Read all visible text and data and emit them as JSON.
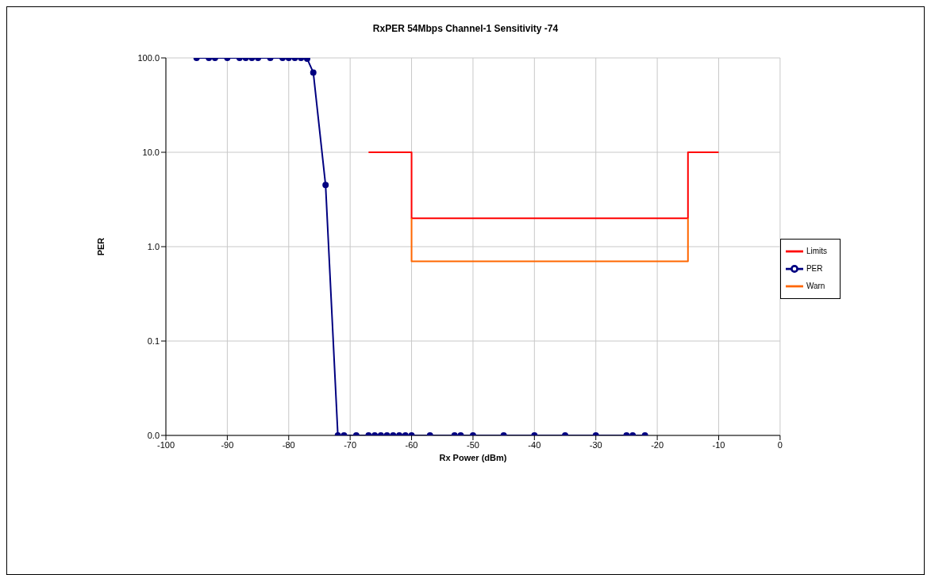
{
  "chart_data": {
    "type": "line",
    "title": "RxPER 54Mbps  Channel-1  Sensitivity -74",
    "xlabel": "Rx Power (dBm)",
    "ylabel": "PER",
    "series": [
      {
        "name": "PER",
        "color": "#000080",
        "marker": "circle",
        "x": [
          -95,
          -93,
          -92,
          -90,
          -88,
          -87,
          -86,
          -85,
          -83,
          -81,
          -80,
          -79,
          -78,
          -77,
          -76,
          -74,
          -72,
          -71,
          -69,
          -67,
          -66,
          -65,
          -64,
          -63,
          -62,
          -61,
          -60,
          -57,
          -53,
          -52,
          -50,
          -45,
          -40,
          -35,
          -30,
          -25,
          -24,
          -22
        ],
        "values": [
          100,
          100,
          100,
          100,
          100,
          100,
          100,
          100,
          100,
          100,
          100,
          100,
          100,
          98,
          70,
          4.5,
          0.01,
          0.01,
          0.01,
          0.01,
          0.01,
          0.01,
          0.01,
          0.01,
          0.01,
          0.01,
          0.01,
          0.01,
          0.01,
          0.01,
          0.01,
          0.01,
          0.01,
          0.01,
          0.01,
          0.01,
          0.01,
          0.01
        ]
      },
      {
        "name": "Limits",
        "color": "#ff0000",
        "marker": "none",
        "x": [
          -67,
          -60,
          -60,
          -15,
          -15,
          -10
        ],
        "values": [
          10,
          10,
          2,
          2,
          10,
          10
        ]
      },
      {
        "name": "Warn",
        "color": "#ff6600",
        "marker": "none",
        "x": [
          -60,
          -60,
          -15,
          -15
        ],
        "values": [
          2,
          0.7,
          0.7,
          2
        ]
      }
    ],
    "xlim": [
      -100,
      0
    ],
    "xticks": [
      -100,
      -90,
      -80,
      -70,
      -60,
      -50,
      -40,
      -30,
      -20,
      -10,
      0
    ],
    "ylim": [
      0.01,
      100
    ],
    "yticks": [
      {
        "value": 0.01,
        "label": "0.0"
      },
      {
        "value": 0.1,
        "label": "0.1"
      },
      {
        "value": 1,
        "label": "1.0"
      },
      {
        "value": 10,
        "label": "10.0"
      },
      {
        "value": 100,
        "label": "100.0"
      }
    ],
    "log": "y",
    "grid": true,
    "legend": "right",
    "line_style": "solid"
  }
}
